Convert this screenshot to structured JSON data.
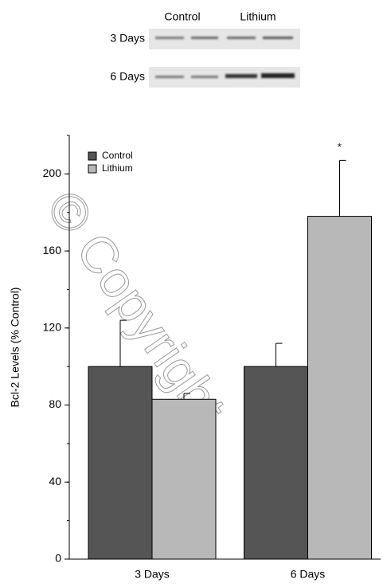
{
  "blot": {
    "columns": [
      "Control",
      "Lithium"
    ],
    "rows": [
      "3 Days",
      "6 Days"
    ]
  },
  "chart_data": {
    "type": "bar",
    "y_label": "Bcl-2 Levels (% Control)",
    "categories": [
      "3 Days",
      "6 Days"
    ],
    "series": [
      {
        "name": "Control",
        "color": "#555555",
        "values": [
          100,
          100
        ],
        "errors": [
          24,
          12
        ]
      },
      {
        "name": "Lithium",
        "color": "#b8b8b8",
        "values": [
          83,
          178
        ],
        "errors": [
          3,
          29
        ]
      }
    ],
    "annotations": [
      "*"
    ],
    "watermark": "© Copyright",
    "ylim": [
      0,
      220
    ],
    "yticks": [
      0,
      40,
      80,
      120,
      160,
      200
    ],
    "minor_step": 20
  }
}
